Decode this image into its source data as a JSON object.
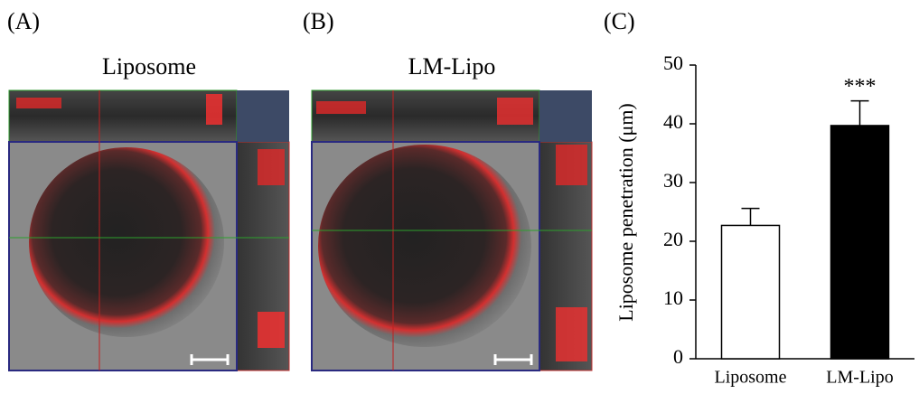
{
  "panels": [
    {
      "label": "(A)",
      "title": "Liposome"
    },
    {
      "label": "(B)",
      "title": "LM-Lipo"
    }
  ],
  "chart_data": {
    "type": "bar",
    "label": "(C)",
    "ylabel": "Liposome penetration (μm)",
    "categories": [
      "Liposome",
      "LM-Lipo"
    ],
    "values": [
      22.7,
      39.7
    ],
    "errors": [
      2.9,
      4.2
    ],
    "significance": [
      null,
      "***"
    ],
    "colors": [
      "#ffffff",
      "#000000"
    ],
    "edgecolor": "#000000",
    "ylim": [
      0,
      50
    ],
    "yticks": [
      0,
      10,
      20,
      30,
      40,
      50
    ]
  }
}
